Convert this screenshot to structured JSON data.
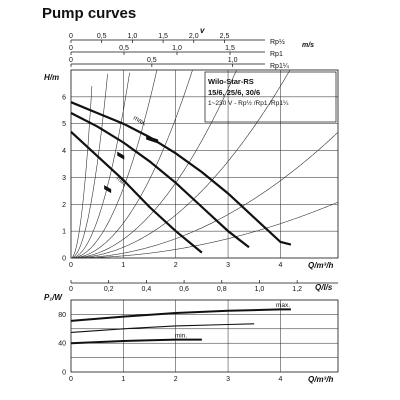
{
  "page_title": "Pump curves",
  "legend": {
    "title_line1": "Wilo-Star-RS",
    "title_line2": "15/6, 25/6, 30/6",
    "subtitle": "1~230 V - Rp½ /Rp1 /Rp1¼"
  },
  "top_scales": {
    "velocity_symbol": "v",
    "unit": "m/s",
    "rows": [
      {
        "label": "Rp½",
        "ticks": [
          "0",
          "0,5",
          "1,0",
          "1,5",
          "2,0",
          "2,5"
        ],
        "values": [
          0,
          0.5,
          1.0,
          1.5,
          2.0,
          2.5
        ],
        "max": 3.16
      },
      {
        "label": "Rp1",
        "ticks": [
          "0",
          "0,5",
          "1,0",
          "1,5"
        ],
        "values": [
          0,
          0.5,
          1.0,
          1.5
        ],
        "max": 1.83
      },
      {
        "label": "Rp1¼",
        "ticks": [
          "0",
          "0,5",
          "1,0"
        ],
        "values": [
          0,
          0.5,
          1.0
        ],
        "max": 1.2
      }
    ]
  },
  "chart_data": [
    {
      "type": "line",
      "title": "",
      "xlabel": "Q/m³/h",
      "ylabel": "H/m",
      "xlim": [
        0,
        5.1
      ],
      "ylim": [
        0,
        7
      ],
      "x_ticks": [
        "0",
        "1",
        "2",
        "3",
        "4"
      ],
      "y_ticks": [
        "0",
        "1",
        "2",
        "3",
        "4",
        "5",
        "6"
      ],
      "secondary_x": {
        "label": "Q/l/s",
        "ticks": [
          "0",
          "0,2",
          "0,4",
          "0,6",
          "0,8",
          "1,0",
          "1,2"
        ],
        "values": [
          0,
          0.2,
          0.4,
          0.6,
          0.8,
          1.0,
          1.2
        ]
      },
      "grid": true,
      "series": [
        {
          "name": "max.",
          "x": [
            0,
            0.5,
            1.0,
            1.5,
            2.0,
            2.5,
            3.0,
            3.5,
            4.0,
            4.2
          ],
          "y": [
            5.8,
            5.4,
            5.0,
            4.5,
            3.9,
            3.2,
            2.4,
            1.5,
            0.6,
            0.5
          ]
        },
        {
          "name": "",
          "x": [
            0,
            0.5,
            1.0,
            1.5,
            2.0,
            2.5,
            3.0,
            3.4
          ],
          "y": [
            5.4,
            4.9,
            4.3,
            3.6,
            2.8,
            1.9,
            1.0,
            0.4
          ]
        },
        {
          "name": "min.",
          "x": [
            0,
            0.5,
            1.0,
            1.5,
            2.0,
            2.5
          ],
          "y": [
            4.7,
            3.8,
            2.9,
            1.9,
            1.0,
            0.2
          ]
        }
      ],
      "system_curves_k": [
        0.08,
        0.18,
        0.4,
        0.7,
        1.3,
        2.6,
        5.5,
        14,
        40
      ],
      "annotations": [
        "max.",
        "min."
      ]
    },
    {
      "type": "line",
      "title": "",
      "xlabel": "Q/m³/h",
      "ylabel": "P₁/W",
      "xlim": [
        0,
        5.1
      ],
      "ylim": [
        0,
        100
      ],
      "x_ticks": [
        "0",
        "1",
        "2",
        "3",
        "4"
      ],
      "y_ticks": [
        "0",
        "40",
        "80"
      ],
      "grid": true,
      "series": [
        {
          "name": "max.",
          "x": [
            0,
            1.0,
            2.0,
            3.0,
            4.0,
            4.2
          ],
          "y": [
            71,
            77,
            82,
            85,
            87,
            87
          ]
        },
        {
          "name": "",
          "x": [
            0,
            1.0,
            2.0,
            3.0,
            3.5
          ],
          "y": [
            55,
            60,
            64,
            66,
            67
          ]
        },
        {
          "name": "min.",
          "x": [
            0,
            1.0,
            2.0,
            2.5
          ],
          "y": [
            40,
            43,
            45,
            45
          ]
        }
      ],
      "annotations": [
        "max.",
        "min."
      ]
    }
  ]
}
